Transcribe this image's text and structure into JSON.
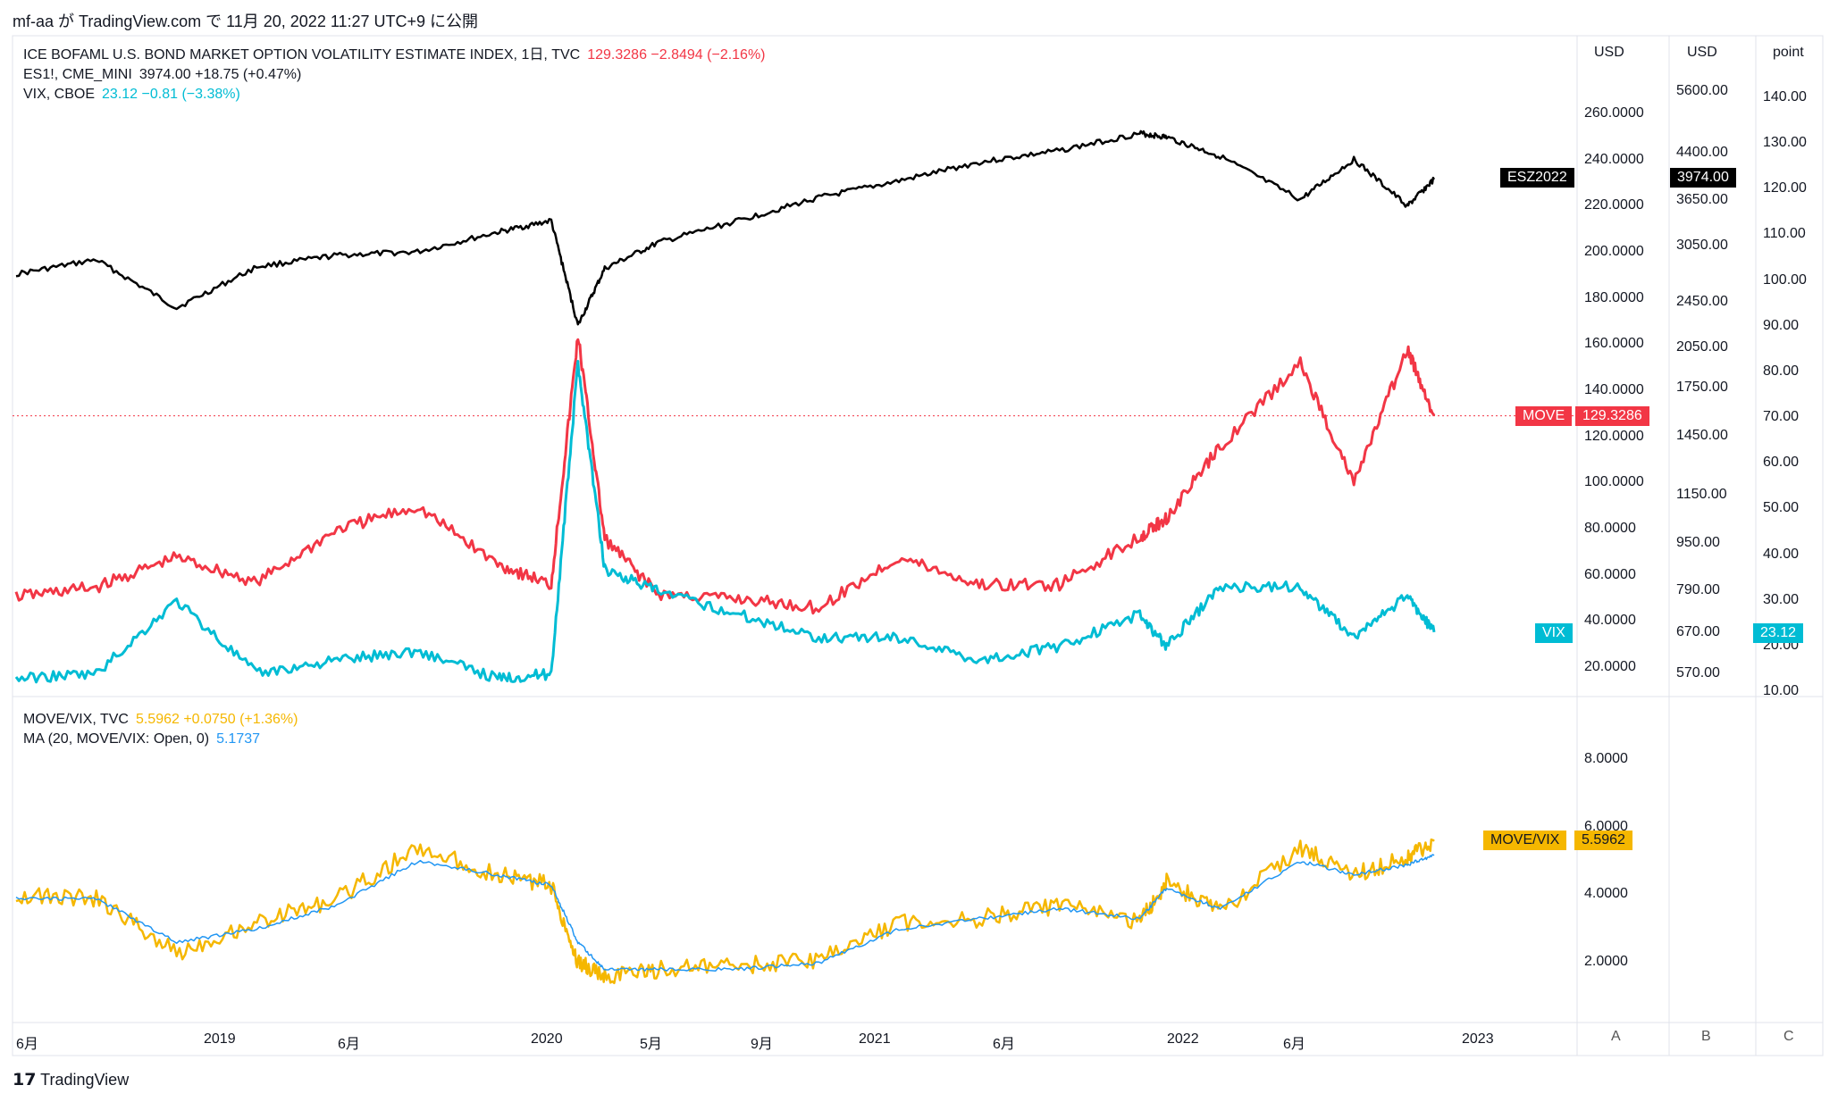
{
  "header": {
    "publish_text": "mf-aa が TradingView.com で 11月 20, 2022 11:27 UTC+9 に公開"
  },
  "legend_top": [
    {
      "name": "ICE BOFAML U.S. BOND MARKET OPTION VOLATILITY ESTIMATE INDEX, 1日, TVC",
      "value": "129.3286  −2.8494 (−2.16%)",
      "color": "#f23645"
    },
    {
      "name": "ES1!, CME_MINI",
      "value": "3974.00  +18.75 (+0.47%)",
      "color": "#131722"
    },
    {
      "name": "VIX, CBOE",
      "value": "23.12  −0.81 (−3.38%)",
      "color": "#00bcd4"
    }
  ],
  "legend_bottom": [
    {
      "name": "MOVE/VIX, TVC",
      "value": "5.5962  +0.0750 (+1.36%)",
      "color": "#f5b700"
    },
    {
      "name": "MA (20, MOVE/VIX: Open, 0)",
      "value": "5.1737",
      "color": "#2196f3"
    }
  ],
  "axes": {
    "headers": [
      "USD",
      "USD",
      "point"
    ],
    "move_ticks": [
      "20.0000",
      "40.0000",
      "60.0000",
      "80.0000",
      "100.0000",
      "120.0000",
      "140.0000",
      "160.0000",
      "180.0000",
      "200.0000",
      "220.0000",
      "240.0000",
      "260.0000"
    ],
    "es_ticks": [
      "570.00",
      "670.00",
      "790.00",
      "950.00",
      "1150.00",
      "1450.00",
      "1750.00",
      "2050.00",
      "2450.00",
      "3050.00",
      "3650.00",
      "4400.00",
      "5600.00"
    ],
    "vix_ticks": [
      "10.00",
      "20.00",
      "30.00",
      "40.00",
      "50.00",
      "60.00",
      "70.00",
      "80.00",
      "90.00",
      "100.00",
      "110.00",
      "120.00",
      "130.00",
      "140.00"
    ],
    "ratio_ticks": [
      "2.0000",
      "4.0000",
      "6.0000",
      "8.0000"
    ],
    "time_ticks": [
      "6月",
      "2019",
      "6月",
      "2020",
      "5月",
      "9月",
      "2021",
      "6月",
      "2022",
      "6月",
      "2023"
    ],
    "scale_buttons": [
      "A",
      "B",
      "C"
    ]
  },
  "tags": {
    "es": {
      "label": "ESZ2022",
      "value": "3974.00",
      "color": "#000000"
    },
    "move": {
      "label": "MOVE",
      "value": "129.3286",
      "color": "#f23645"
    },
    "vix": {
      "label": "VIX",
      "value": "23.12",
      "color": "#00bcd4"
    },
    "ratio": {
      "label": "MOVE/VIX",
      "value": "5.5962",
      "color": "#f5b700"
    }
  },
  "footer": {
    "brand": "TradingView"
  },
  "chart_data": [
    {
      "type": "line",
      "title": "",
      "x": [
        "2018-06",
        "2018-09",
        "2018-12",
        "2019-03",
        "2019-06",
        "2019-09",
        "2019-12",
        "2020-02",
        "2020-03",
        "2020-04",
        "2020-06",
        "2020-09",
        "2020-12",
        "2021-03",
        "2021-06",
        "2021-09",
        "2021-12",
        "2022-01",
        "2022-03",
        "2022-06",
        "2022-08",
        "2022-10",
        "2022-11"
      ],
      "series": [
        {
          "name": "ES1!, CME_MINI",
          "color": "#000000",
          "values": [
            2740,
            2900,
            2400,
            2820,
            2950,
            2990,
            3230,
            3380,
            2240,
            2800,
            3100,
            3380,
            3700,
            3950,
            4250,
            4450,
            4760,
            4690,
            4350,
            3670,
            4300,
            3580,
            3974
          ]
        },
        {
          "name": "ICE BOFAML U.S. BOND MARKET OPTION VOLATILITY ESTIMATE INDEX",
          "color": "#f23645",
          "values": [
            51,
            55,
            68,
            57,
            80,
            90,
            65,
            56,
            164,
            76,
            52,
            50,
            46,
            68,
            56,
            56,
            77,
            85,
            116,
            152,
            100,
            158,
            129.33
          ]
        },
        {
          "name": "VIX, CBOE",
          "color": "#00bcd4",
          "values": [
            13,
            14,
            30,
            14,
            17,
            19,
            13,
            14,
            82,
            37,
            32,
            27,
            22,
            22,
            17,
            20,
            27,
            20,
            33,
            33,
            22,
            31,
            23.12
          ]
        }
      ]
    },
    {
      "type": "line",
      "title": "",
      "x": [
        "2018-06",
        "2018-09",
        "2018-12",
        "2019-03",
        "2019-06",
        "2019-09",
        "2019-12",
        "2020-02",
        "2020-03",
        "2020-04",
        "2020-06",
        "2020-09",
        "2020-12",
        "2021-03",
        "2021-06",
        "2021-09",
        "2021-12",
        "2022-01",
        "2022-03",
        "2022-06",
        "2022-08",
        "2022-10",
        "2022-11"
      ],
      "series": [
        {
          "name": "MOVE/VIX, TVC",
          "color": "#f5b700",
          "values": [
            4.0,
            3.9,
            2.3,
            3.2,
            3.9,
            5.4,
            4.6,
            4.3,
            2.0,
            1.6,
            1.8,
            1.9,
            2.1,
            3.2,
            3.3,
            3.7,
            3.2,
            4.4,
            3.5,
            5.4,
            4.6,
            5.1,
            5.5962
          ]
        },
        {
          "name": "MA (20, MOVE/VIX: Open, 0)",
          "color": "#2196f3",
          "values": [
            3.9,
            3.9,
            2.6,
            3.0,
            3.7,
            5.0,
            4.6,
            4.3,
            2.6,
            1.8,
            1.8,
            1.8,
            2.0,
            3.0,
            3.3,
            3.6,
            3.3,
            4.2,
            3.6,
            5.0,
            4.6,
            4.9,
            5.1737
          ]
        }
      ]
    }
  ]
}
